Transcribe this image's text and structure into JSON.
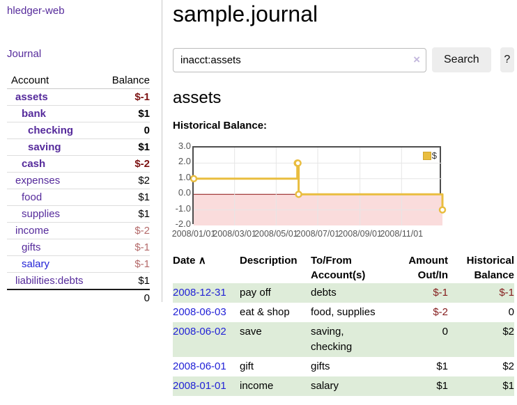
{
  "app": {
    "brand": "hledger-web"
  },
  "sidebar": {
    "journal_link": "Journal",
    "accounts": {
      "header_account": "Account",
      "header_balance": "Balance",
      "rows": [
        {
          "name": "assets",
          "depth": 1,
          "bold": true,
          "balance": "$-1",
          "negative": "strong"
        },
        {
          "name": "bank",
          "depth": 2,
          "bold": true,
          "balance": "$1"
        },
        {
          "name": "checking",
          "depth": 3,
          "bold": true,
          "balance": "0"
        },
        {
          "name": "saving",
          "depth": 3,
          "bold": true,
          "balance": "$1"
        },
        {
          "name": "cash",
          "depth": 2,
          "bold": true,
          "balance": "$-2",
          "negative": "strong"
        },
        {
          "name": "expenses",
          "depth": 1,
          "bold": false,
          "balance": "$2"
        },
        {
          "name": "food",
          "depth": 2,
          "bold": false,
          "balance": "$1"
        },
        {
          "name": "supplies",
          "depth": 2,
          "bold": false,
          "balance": "$1"
        },
        {
          "name": "income",
          "depth": 1,
          "bold": false,
          "balance": "$-2",
          "negative": "soft"
        },
        {
          "name": "gifts",
          "depth": 2,
          "bold": false,
          "balance": "$-1",
          "negative": "soft"
        },
        {
          "name": "salary",
          "depth": 2,
          "bold": false,
          "balance": "$-1",
          "negative": "soft",
          "link_color": "blue"
        },
        {
          "name": "liabilities:debts",
          "depth": 1,
          "bold": false,
          "balance": "$1"
        }
      ],
      "total": "0"
    }
  },
  "main": {
    "title": "sample.journal",
    "search": {
      "value": "inacct:assets",
      "clear_icon": "×",
      "button": "Search",
      "help": "?"
    },
    "heading": "assets",
    "chart_title": "Historical Balance:",
    "register": {
      "headers": {
        "date": "Date",
        "sort_icon": "∧",
        "description": "Description",
        "tofrom_line1": "To/From",
        "tofrom_line2": "Account(s)",
        "amount_line1": "Amount",
        "amount_line2": "Out/In",
        "balance_line1": "Historical",
        "balance_line2": "Balance"
      },
      "rows": [
        {
          "date": "2008-12-31",
          "description": "pay off",
          "accounts": "debts",
          "amount": "$-1",
          "amount_negative": true,
          "balance": "$-1",
          "balance_negative": true,
          "shaded": true
        },
        {
          "date": "2008-06-03",
          "description": "eat & shop",
          "accounts": "food, supplies",
          "amount": "$-2",
          "amount_negative": true,
          "balance": "0",
          "balance_negative": false,
          "shaded": false
        },
        {
          "date": "2008-06-02",
          "description": "save",
          "accounts": "saving, checking",
          "amount": "0",
          "amount_negative": false,
          "balance": "$2",
          "balance_negative": false,
          "shaded": true
        },
        {
          "date": "2008-06-01",
          "description": "gift",
          "accounts": "gifts",
          "amount": "$1",
          "amount_negative": false,
          "balance": "$2",
          "balance_negative": false,
          "shaded": false
        },
        {
          "date": "2008-01-01",
          "description": "income",
          "accounts": "salary",
          "amount": "$1",
          "amount_negative": false,
          "balance": "$1",
          "balance_negative": false,
          "shaded": true
        }
      ]
    }
  },
  "chart_data": {
    "type": "line",
    "step": true,
    "title": "Historical Balance",
    "legend_label": "$",
    "legend_position": "top-right",
    "grid": true,
    "series": [
      {
        "name": "$",
        "color": "#e9bd3f",
        "points": [
          [
            "2008-01-01",
            1
          ],
          [
            "2008-06-01",
            2
          ],
          [
            "2008-06-02",
            2
          ],
          [
            "2008-06-03",
            0
          ],
          [
            "2008-12-31",
            -1
          ]
        ]
      }
    ],
    "x_range": [
      "2008-01-01",
      "2008-12-31"
    ],
    "ylim": [
      -2,
      3
    ],
    "yticks": [
      "3.0",
      "2.0",
      "1.0",
      "0.0",
      "-1.0",
      "-2.0"
    ],
    "xticks": [
      {
        "label": "2008/01/01",
        "date": "2008-01-01"
      },
      {
        "label": "2008/03/01",
        "date": "2008-03-01"
      },
      {
        "label": "2008/05/01",
        "date": "2008-05-01"
      },
      {
        "label": "2008/07/01",
        "date": "2008-07-01"
      },
      {
        "label": "2008/09/01",
        "date": "2008-09-01"
      },
      {
        "label": "2008/11/01",
        "date": "2008-11-01"
      }
    ],
    "zero_line_color": "#8b1010",
    "negative_region_color": "#fadcdc",
    "grid_color": "#e6e6e6",
    "border_color": "#4d4d4d"
  },
  "colors": {
    "link_purple": "#552a9b",
    "link_blue": "#2222d6",
    "negative_strong": "#7c1313",
    "negative_soft": "#b46a6a",
    "negative_table": "#841c1c",
    "row_green": "#deecd9",
    "accent_yellow": "#e9bd3f"
  }
}
